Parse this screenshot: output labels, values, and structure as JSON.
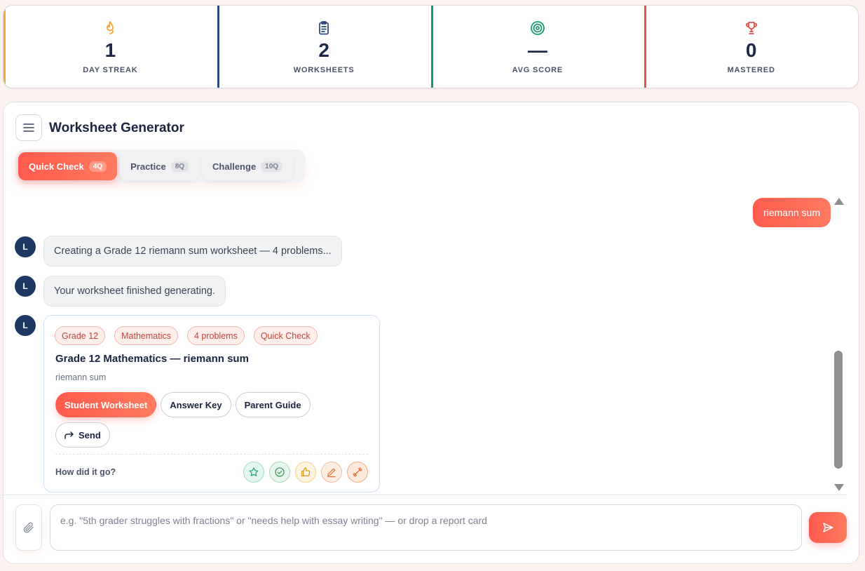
{
  "stats": [
    {
      "value": "1",
      "label": "DAY STREAK",
      "icon": "flame-icon",
      "color": "#f5a33b"
    },
    {
      "value": "2",
      "label": "WORKSHEETS",
      "icon": "clipboard-icon",
      "color": "#2f4a7c"
    },
    {
      "value": "—",
      "label": "AVG SCORE",
      "icon": "target-icon",
      "color": "#1a9a6c"
    },
    {
      "value": "0",
      "label": "MASTERED",
      "icon": "trophy-icon",
      "color": "#e8534a"
    }
  ],
  "panel": {
    "title": "Worksheet Generator"
  },
  "modes": [
    {
      "label": "Quick Check",
      "count": "4Q",
      "active": true
    },
    {
      "label": "Practice",
      "count": "8Q",
      "active": false
    },
    {
      "label": "Challenge",
      "count": "10Q",
      "active": false
    }
  ],
  "chat": {
    "user_message": "riemann sum",
    "assistant_initial": "L",
    "messages": [
      "Creating a Grade 12 riemann sum worksheet — 4 problems...",
      "Your worksheet finished generating."
    ],
    "card": {
      "tags": [
        "Grade 12",
        "Mathematics",
        "4 problems",
        "Quick Check"
      ],
      "title": "Grade 12 Mathematics — riemann sum",
      "subtitle": "riemann sum",
      "actions": [
        "Student Worksheet",
        "Answer Key",
        "Parent Guide"
      ],
      "send_label": "Send",
      "feedback_question": "How did it go?"
    }
  },
  "composer": {
    "placeholder": "e.g. \"5th grader struggles with fractions\" or \"needs help with essay writing\" — or drop a report card"
  },
  "colors": {
    "accent": "#ff5a4f",
    "navy": "#1f3763"
  }
}
